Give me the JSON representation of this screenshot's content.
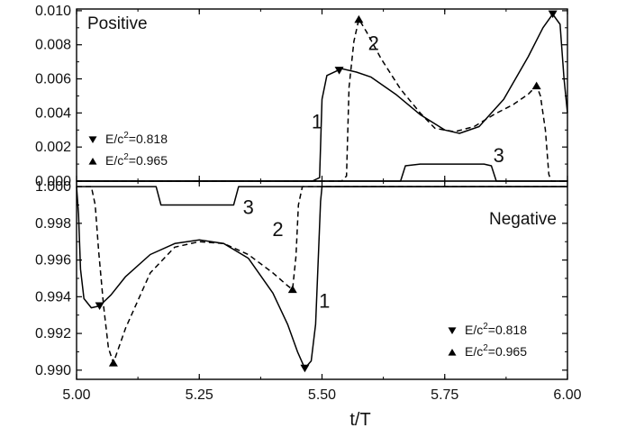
{
  "chart_data": [
    {
      "type": "line",
      "title": "Positive",
      "xlim": [
        5.0,
        6.0
      ],
      "ylim": [
        0.0,
        0.0101
      ],
      "yticks": [
        "0.000",
        "0.002",
        "0.004",
        "0.006",
        "0.008",
        "0.010"
      ],
      "legend": {
        "placement": "lower-left",
        "entries": [
          {
            "marker": "triangle-down",
            "text": "E/c",
            "sup": "2",
            "value": "=0.818"
          },
          {
            "marker": "triangle-up",
            "text": "E/c",
            "sup": "2",
            "value": "=0.965"
          }
        ]
      },
      "series": [
        {
          "name": "1",
          "style": "solid",
          "marker": "triangle-down",
          "label_at": [
            5.49,
            0.0031
          ],
          "markers": [
            [
              5.535,
              0.0065
            ],
            [
              5.97,
              0.0098
            ]
          ],
          "points": [
            [
              5.0,
              0.0
            ],
            [
              5.48,
              0.0
            ],
            [
              5.495,
              0.0002
            ],
            [
              5.5,
              0.0048
            ],
            [
              5.51,
              0.0062
            ],
            [
              5.54,
              0.0066
            ],
            [
              5.57,
              0.0064
            ],
            [
              5.6,
              0.0061
            ],
            [
              5.65,
              0.0051
            ],
            [
              5.7,
              0.0039
            ],
            [
              5.75,
              0.003
            ],
            [
              5.78,
              0.0028
            ],
            [
              5.82,
              0.0032
            ],
            [
              5.87,
              0.0048
            ],
            [
              5.92,
              0.0073
            ],
            [
              5.95,
              0.009
            ],
            [
              5.97,
              0.0098
            ],
            [
              5.985,
              0.0092
            ],
            [
              5.993,
              0.006
            ],
            [
              6.0,
              0.004
            ]
          ]
        },
        {
          "name": "2",
          "style": "dashed",
          "marker": "triangle-up",
          "label_at": [
            5.605,
            0.0077
          ],
          "markers": [
            [
              5.575,
              0.0095
            ],
            [
              5.937,
              0.0056
            ]
          ],
          "points": [
            [
              5.0,
              0.0
            ],
            [
              5.54,
              0.0
            ],
            [
              5.55,
              0.0003
            ],
            [
              5.555,
              0.0055
            ],
            [
              5.565,
              0.0082
            ],
            [
              5.575,
              0.0095
            ],
            [
              5.59,
              0.0088
            ],
            [
              5.62,
              0.0072
            ],
            [
              5.66,
              0.0054
            ],
            [
              5.7,
              0.004
            ],
            [
              5.73,
              0.0031
            ],
            [
              5.77,
              0.0029
            ],
            [
              5.81,
              0.0032
            ],
            [
              5.85,
              0.0039
            ],
            [
              5.89,
              0.0045
            ],
            [
              5.92,
              0.0051
            ],
            [
              5.937,
              0.0056
            ],
            [
              5.945,
              0.005
            ],
            [
              5.955,
              0.003
            ],
            [
              5.962,
              0.0004
            ],
            [
              5.967,
              0.0
            ],
            [
              6.0,
              0.0
            ]
          ]
        },
        {
          "name": "3",
          "style": "solid",
          "marker": "none",
          "label_at": [
            5.86,
            0.0011
          ],
          "points": [
            [
              5.0,
              0.0
            ],
            [
              5.66,
              0.0
            ],
            [
              5.67,
              0.0009
            ],
            [
              5.7,
              0.001
            ],
            [
              5.83,
              0.001
            ],
            [
              5.845,
              0.0009
            ],
            [
              5.855,
              0.0
            ],
            [
              6.0,
              0.0
            ]
          ]
        }
      ]
    },
    {
      "type": "line",
      "title": "Negative",
      "xlabel": "t/T",
      "xlim": [
        5.0,
        6.0
      ],
      "ylim": [
        0.9895,
        1.0003
      ],
      "xticks": [
        "5.00",
        "5.25",
        "5.50",
        "5.75",
        "6.00"
      ],
      "yticks": [
        "0.990",
        "0.992",
        "0.994",
        "0.996",
        "0.998",
        "1.000"
      ],
      "legend": {
        "placement": "lower-right",
        "entries": [
          {
            "marker": "triangle-down",
            "text": "E/c",
            "sup": "2",
            "value": "=0.818"
          },
          {
            "marker": "triangle-up",
            "text": "E/c",
            "sup": "2",
            "value": "=0.965"
          }
        ]
      },
      "series": [
        {
          "name": "1",
          "style": "solid",
          "marker": "triangle-down",
          "label_at": [
            5.505,
            0.9934
          ],
          "markers": [
            [
              5.047,
              0.9935
            ],
            [
              5.465,
              0.9901
            ]
          ],
          "points": [
            [
              5.0,
              1.0
            ],
            [
              5.004,
              0.9985
            ],
            [
              5.008,
              0.9955
            ],
            [
              5.015,
              0.9939
            ],
            [
              5.03,
              0.9934
            ],
            [
              5.047,
              0.9935
            ],
            [
              5.07,
              0.9941
            ],
            [
              5.1,
              0.9951
            ],
            [
              5.15,
              0.9963
            ],
            [
              5.2,
              0.9969
            ],
            [
              5.25,
              0.9971
            ],
            [
              5.3,
              0.9969
            ],
            [
              5.35,
              0.9961
            ],
            [
              5.4,
              0.9942
            ],
            [
              5.43,
              0.9925
            ],
            [
              5.45,
              0.991
            ],
            [
              5.465,
              0.9901
            ],
            [
              5.478,
              0.9905
            ],
            [
              5.487,
              0.9925
            ],
            [
              5.493,
              0.9965
            ],
            [
              5.497,
              0.9992
            ],
            [
              5.5,
              1.0
            ],
            [
              6.0,
              1.0
            ]
          ]
        },
        {
          "name": "2",
          "style": "dashed",
          "marker": "triangle-up",
          "label_at": [
            5.41,
            0.9973
          ],
          "markers": [
            [
              5.075,
              0.9904
            ],
            [
              5.44,
              0.9944
            ]
          ],
          "points": [
            [
              5.0,
              1.0
            ],
            [
              5.03,
              1.0
            ],
            [
              5.038,
              0.999
            ],
            [
              5.045,
              0.9965
            ],
            [
              5.055,
              0.9935
            ],
            [
              5.065,
              0.9912
            ],
            [
              5.075,
              0.9904
            ],
            [
              5.1,
              0.9923
            ],
            [
              5.15,
              0.9953
            ],
            [
              5.2,
              0.9967
            ],
            [
              5.25,
              0.997
            ],
            [
              5.3,
              0.9969
            ],
            [
              5.35,
              0.9963
            ],
            [
              5.4,
              0.9953
            ],
            [
              5.43,
              0.9946
            ],
            [
              5.44,
              0.9944
            ],
            [
              5.447,
              0.9962
            ],
            [
              5.452,
              0.999
            ],
            [
              5.46,
              1.0
            ],
            [
              6.0,
              1.0
            ]
          ]
        },
        {
          "name": "3",
          "style": "solid",
          "marker": "none",
          "label_at": [
            5.35,
            0.9985
          ],
          "points": [
            [
              5.0,
              1.0
            ],
            [
              5.162,
              1.0
            ],
            [
              5.172,
              0.999
            ],
            [
              5.32,
              0.999
            ],
            [
              5.33,
              1.0
            ],
            [
              6.0,
              1.0
            ]
          ]
        }
      ]
    }
  ]
}
